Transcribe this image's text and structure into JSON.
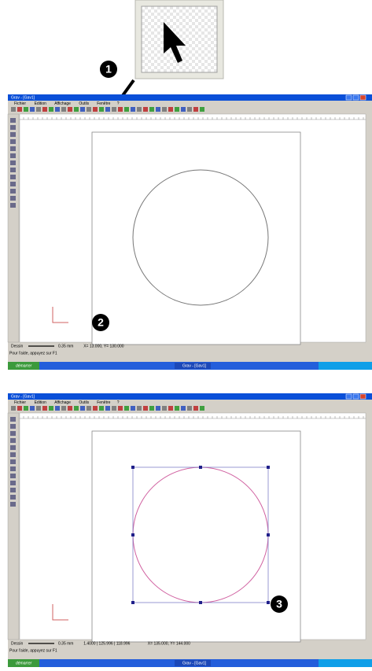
{
  "callouts": [
    "1",
    "2",
    "3"
  ],
  "screens": [
    {
      "title": "Grav - [Gav1]",
      "menu": [
        "Fichier",
        "Edition",
        "Affichage",
        "Outils",
        "Fenêtre",
        "?"
      ],
      "status": [
        "Dessin",
        "0.35 mm",
        "X= 13.000, Y= 130.000"
      ],
      "help": "Pour l'aide, appuyez sur F1",
      "start": "démarrer",
      "tasks": [
        "Grav - [Gav1]"
      ]
    },
    {
      "title": "Grav - [Gav1]",
      "menu": [
        "Fichier",
        "Edition",
        "Affichage",
        "Outils",
        "Fenêtre",
        "?"
      ],
      "status": [
        "Dessin",
        "0.35 mm",
        "1.4000 | 125.996 | 118.996",
        "X= 135.000, Y= 144.000"
      ],
      "help": "Pour l'aide, appuyez sur F1",
      "start": "démarrer",
      "tasks": [
        "Grav - [Gav1]"
      ]
    }
  ]
}
